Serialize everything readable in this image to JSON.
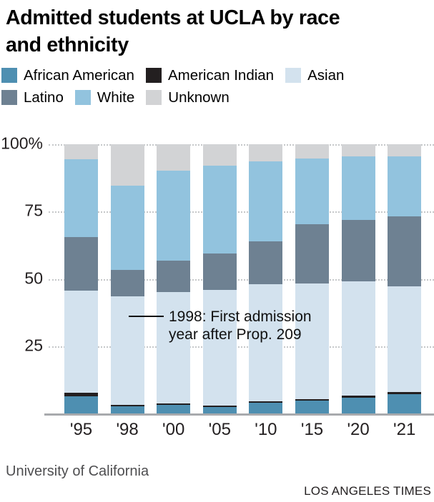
{
  "page": {
    "title_line1": "Admitted students at UCLA by race",
    "title_line2": "and ethnicity",
    "source": "University of California",
    "credit": "LOS ANGELES TIMES"
  },
  "annotation": {
    "text": "1998: First admission year after Prop. 209"
  },
  "chart_data": {
    "type": "bar",
    "subtype": "stacked-100-percent-column",
    "title": "Admitted students at UCLA by race and ethnicity",
    "categories": [
      "'95",
      "'98",
      "'00",
      "'05",
      "'10",
      "'15",
      "'20",
      "'21"
    ],
    "series": [
      {
        "name": "African American",
        "color": "#4e8fb1",
        "values": [
          6.3,
          2.6,
          3.1,
          2.4,
          3.9,
          4.8,
          5.9,
          7.2
        ]
      },
      {
        "name": "American Indian",
        "color": "#231f20",
        "values": [
          1.4,
          0.6,
          0.6,
          0.5,
          0.7,
          0.6,
          0.7,
          0.7
        ]
      },
      {
        "name": "Asian",
        "color": "#d3e2ee",
        "values": [
          37.9,
          40.4,
          41.5,
          42.9,
          43.5,
          42.8,
          42.5,
          39.3
        ]
      },
      {
        "name": "Latino",
        "color": "#6e8192",
        "values": [
          19.8,
          9.7,
          11.6,
          13.5,
          15.7,
          22.2,
          22.9,
          26.0
        ]
      },
      {
        "name": "White",
        "color": "#92c3de",
        "values": [
          29.0,
          31.3,
          33.3,
          32.8,
          29.9,
          24.3,
          23.6,
          22.4
        ]
      },
      {
        "name": "Unknown",
        "color": "#d2d3d5",
        "values": [
          5.6,
          15.4,
          9.9,
          7.9,
          6.3,
          5.3,
          4.4,
          4.4
        ]
      }
    ],
    "yticks": [
      "100%",
      "75",
      "50",
      "25"
    ],
    "ylim": [
      0,
      100
    ],
    "grid": "horizontal dotted lines at 25, 50, 75, 100",
    "legend_position": "top, two rows",
    "annotation": "1998: First admission year after Prop. 209"
  }
}
